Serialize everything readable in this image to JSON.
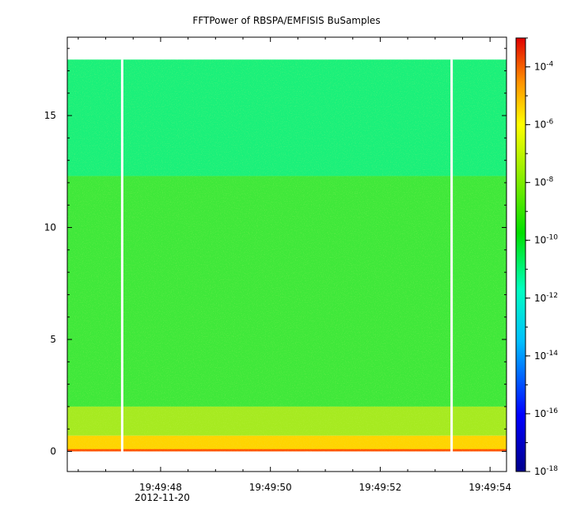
{
  "chart_data": {
    "type": "heatmap",
    "title": "FFTPower of RBSPA/EMFISIS  BuSamples",
    "xlabel": "",
    "ylabel": "",
    "x_range": [
      "2012-11-20T19:49:46.3",
      "2012-11-20T19:49:54.3"
    ],
    "x_ticks": [
      "19:49:48",
      "19:49:50",
      "19:49:52",
      "19:49:54"
    ],
    "x_date_label": "2012-11-20",
    "ylim": [
      -0.9,
      18.5
    ],
    "y_ticks": [
      "0",
      "5",
      "10",
      "15"
    ],
    "data_extent_y": [
      0,
      17.5
    ],
    "gaps_at": [
      "19:49:47.3",
      "19:49:53.3"
    ],
    "colorbar": {
      "log_scale": true,
      "range": [
        1e-18,
        0.001
      ],
      "ticks": [
        {
          "base": "10",
          "exp": "-4"
        },
        {
          "base": "10",
          "exp": "-6"
        },
        {
          "base": "10",
          "exp": "-8"
        },
        {
          "base": "10",
          "exp": "-10"
        },
        {
          "base": "10",
          "exp": "-12"
        },
        {
          "base": "10",
          "exp": "-14"
        },
        {
          "base": "10",
          "exp": "-16"
        },
        {
          "base": "10",
          "exp": "-18"
        }
      ]
    },
    "bands": [
      {
        "y_range": [
          12.3,
          17.5
        ],
        "log_power": -11.7
      },
      {
        "y_range": [
          2.0,
          12.3
        ],
        "log_power": -10.2
      },
      {
        "y_range": [
          0.7,
          2.0
        ],
        "log_power": -9.4
      },
      {
        "y_range": [
          0.0,
          0.7
        ],
        "log_power": -8.6
      },
      {
        "y_range": [
          0.0,
          0.1
        ],
        "log_power": -5.5
      }
    ],
    "grid": false
  },
  "colors": {
    "upper_band": "#1af07a",
    "main_band": "#3fe83a",
    "lower_band": "#a6ea20",
    "bottom_band": "#ffd400",
    "baseline": "#ff5000",
    "gap": "#ffffff"
  }
}
